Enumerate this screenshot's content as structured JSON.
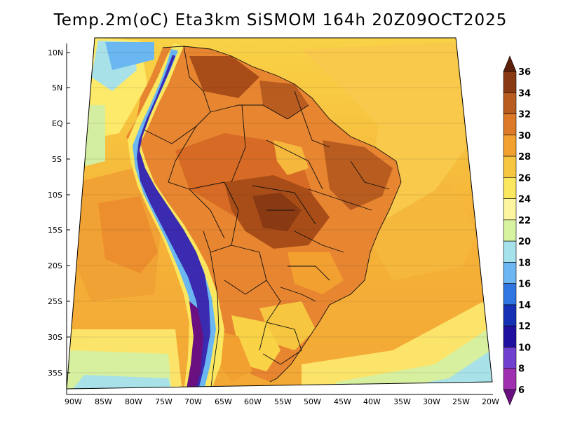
{
  "title": "Temp.2m(oC) Eta3km SiSMOM 164h 20Z09OCT2025",
  "lat_labels": [
    "10N",
    "5N",
    "EQ",
    "5S",
    "10S",
    "15S",
    "20S",
    "25S",
    "30S",
    "35S"
  ],
  "lon_labels": [
    "90W",
    "85W",
    "80W",
    "75W",
    "70W",
    "65W",
    "60W",
    "55W",
    "50W",
    "45W",
    "40W",
    "35W",
    "30W",
    "25W",
    "20W"
  ],
  "colorbar": {
    "labels": [
      "36",
      "34",
      "32",
      "30",
      "28",
      "26",
      "24",
      "22",
      "20",
      "18",
      "16",
      "14",
      "12",
      "10",
      "8",
      "6"
    ],
    "colors": [
      "#5c1f0a",
      "#8a3a12",
      "#b85c20",
      "#dc7a28",
      "#f2a030",
      "#f7c640",
      "#fbe860",
      "#fdf5a0",
      "#d7f3a0",
      "#a6e2ec",
      "#6ab7f2",
      "#2f76e2",
      "#1530b4",
      "#2010a0",
      "#7040d0",
      "#a030b0",
      "#6a1080"
    ]
  }
}
